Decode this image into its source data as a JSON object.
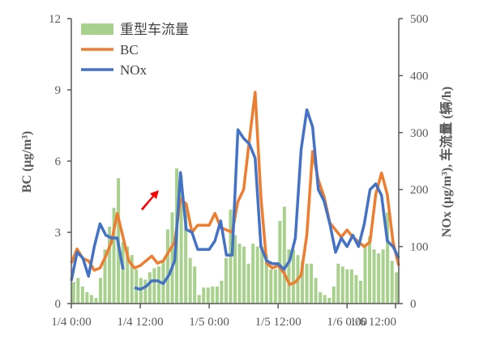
{
  "chart_data": {
    "type": "bar+line",
    "x_ticks": [
      "1/4 0:00",
      "1/4 12:00",
      "1/5 0:00",
      "1/5 12:00",
      "1/6 0:00",
      "1/6 12:00"
    ],
    "x_range_hours": [
      0,
      57
    ],
    "ylabel_left": "BC (μg/m³)",
    "ylabel_right": "NOx (μg/m³), 车流量 (辆/h)",
    "ylim_left": [
      0,
      12
    ],
    "yticks_left": [
      0,
      3,
      6,
      9,
      12
    ],
    "ylim_right": [
      0,
      500
    ],
    "yticks_right": [
      0,
      100,
      200,
      300,
      400,
      500
    ],
    "grid": false,
    "legend_position": "top-left",
    "colors": {
      "traffic": "#a9d18e",
      "bc": "#ed7d31",
      "nox": "#4472c4",
      "arrow": "#ff0000",
      "axis": "#595959"
    },
    "annotation": "red-arrow",
    "series": [
      {
        "name": "重型车流量",
        "kind": "bar",
        "axis": "right",
        "values": [
          38,
          45,
          30,
          20,
          15,
          10,
          45,
          95,
          135,
          168,
          220,
          108,
          100,
          85,
          60,
          45,
          42,
          55,
          62,
          65,
          75,
          130,
          160,
          237,
          225,
          165,
          80,
          65,
          15,
          28,
          28,
          30,
          30,
          40,
          80,
          165,
          120,
          105,
          100,
          70,
          105,
          100,
          100,
          85,
          60,
          60,
          145,
          170,
          95,
          95,
          85,
          75,
          70,
          70,
          45,
          20,
          15,
          10,
          30,
          70,
          65,
          60,
          60,
          50,
          40,
          100,
          118,
          95,
          88,
          95,
          160,
          75,
          55
        ]
      },
      {
        "name": "BC",
        "kind": "line",
        "axis": "left",
        "x": [
          0,
          1,
          2,
          3,
          4,
          5,
          6,
          7,
          8,
          9,
          10,
          11,
          12,
          13,
          14,
          15,
          16,
          17,
          18,
          19,
          20,
          21,
          22,
          23,
          24,
          25,
          26,
          27,
          28,
          29,
          30,
          31,
          32,
          33,
          34,
          35,
          36,
          37,
          38,
          39,
          40,
          41,
          42,
          43,
          44,
          45,
          46,
          47,
          48,
          49,
          50,
          51,
          52,
          53,
          54,
          55,
          56,
          57
        ],
        "values": [
          1.7,
          2.3,
          1.9,
          1.8,
          1.4,
          1.5,
          2.0,
          2.6,
          3.8,
          2.8,
          1.8,
          1.5,
          1.6,
          1.8,
          2.0,
          1.7,
          1.8,
          2.2,
          2.6,
          4.4,
          4.2,
          3.0,
          3.3,
          3.3,
          3.3,
          3.8,
          3.2,
          3.1,
          3.0,
          4.3,
          4.8,
          6.9,
          8.9,
          4.5,
          1.7,
          1.5,
          1.6,
          1.3,
          0.8,
          0.9,
          1.2,
          2.9,
          6.4,
          5.2,
          4.5,
          3.4,
          3.1,
          2.8,
          3.1,
          2.8,
          2.6,
          2.4,
          2.6,
          4.6,
          5.5,
          4.6,
          2.6,
          1.6
        ]
      },
      {
        "name": "NOx",
        "kind": "line",
        "axis": "right",
        "segments": [
          {
            "x": [
              0,
              1,
              2,
              3,
              4,
              5,
              6,
              7,
              8,
              9
            ],
            "values": [
              40,
              90,
              80,
              48,
              100,
              140,
              120,
              115,
              115,
              60
            ]
          },
          {
            "x": [
              11,
              12,
              13,
              14,
              15,
              16,
              17,
              18,
              19,
              20,
              21,
              22,
              23,
              24,
              25,
              26,
              27,
              28,
              29,
              30,
              31,
              32,
              33,
              34,
              35,
              36,
              37,
              38,
              39,
              40,
              41,
              42,
              43,
              44,
              45,
              46,
              47,
              48,
              49,
              50,
              51,
              52,
              53,
              54,
              55,
              56,
              57
            ],
            "values": [
              28,
              25,
              30,
              40,
              40,
              35,
              50,
              75,
              230,
              130,
              125,
              95,
              95,
              95,
              110,
              145,
              85,
              85,
              305,
              290,
              280,
              255,
              100,
              75,
              70,
              70,
              60,
              75,
              115,
              270,
              340,
              310,
              200,
              180,
              140,
              90,
              115,
              100,
              120,
              100,
              140,
              200,
              210,
              190,
              110,
              100,
              80
            ]
          }
        ]
      }
    ]
  }
}
